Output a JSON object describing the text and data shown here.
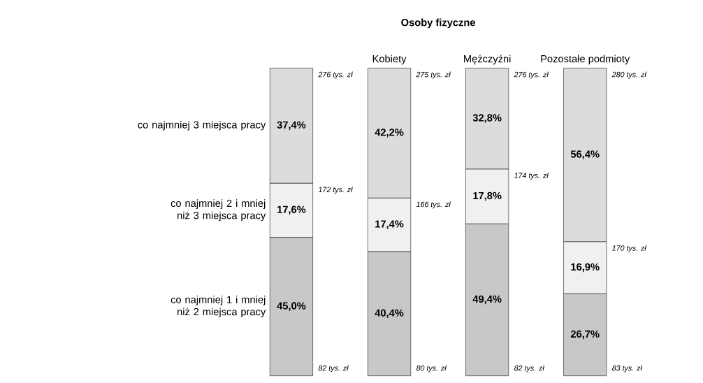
{
  "chart_data": {
    "type": "bar",
    "stacked": true,
    "categories": [
      null,
      "Kobiety",
      "Mężczyźni",
      "Pozostałe podmioty"
    ],
    "series": [
      {
        "name": "co najmniej 3 miejsca pracy",
        "color": "#dcdcdc",
        "values": [
          37.4,
          42.2,
          32.8,
          56.4
        ],
        "value_labels": [
          "37,4%",
          "42,2%",
          "32,8%",
          "56,4%"
        ]
      },
      {
        "name": "co najmniej 2 i mniej niż 3 miejsca pracy",
        "color": "#f0f0f0",
        "values": [
          17.6,
          17.4,
          17.8,
          16.9
        ],
        "value_labels": [
          "17,6%",
          "17,4%",
          "17,8%",
          "16,9%"
        ]
      },
      {
        "name": "co najmniej 1 i mniej niż 2 miejsca pracy",
        "color": "#c8c8c8",
        "values": [
          45.0,
          40.4,
          49.4,
          26.7
        ],
        "value_labels": [
          "45,0%",
          "40,4%",
          "49,4%",
          "26,7%"
        ]
      }
    ],
    "annotations": [
      "Osoby fizyczne",
      "276 tys. zł",
      "172 tys. zł",
      "82 tys. zł",
      "275 tys. zł",
      "166 tys. zł",
      "80 tys. zł",
      "276 tys. zł",
      "174 tys. zł",
      "82 tys. zł",
      "280 tys. zł",
      "170 tys. zł",
      "83 tys. zł"
    ]
  }
}
